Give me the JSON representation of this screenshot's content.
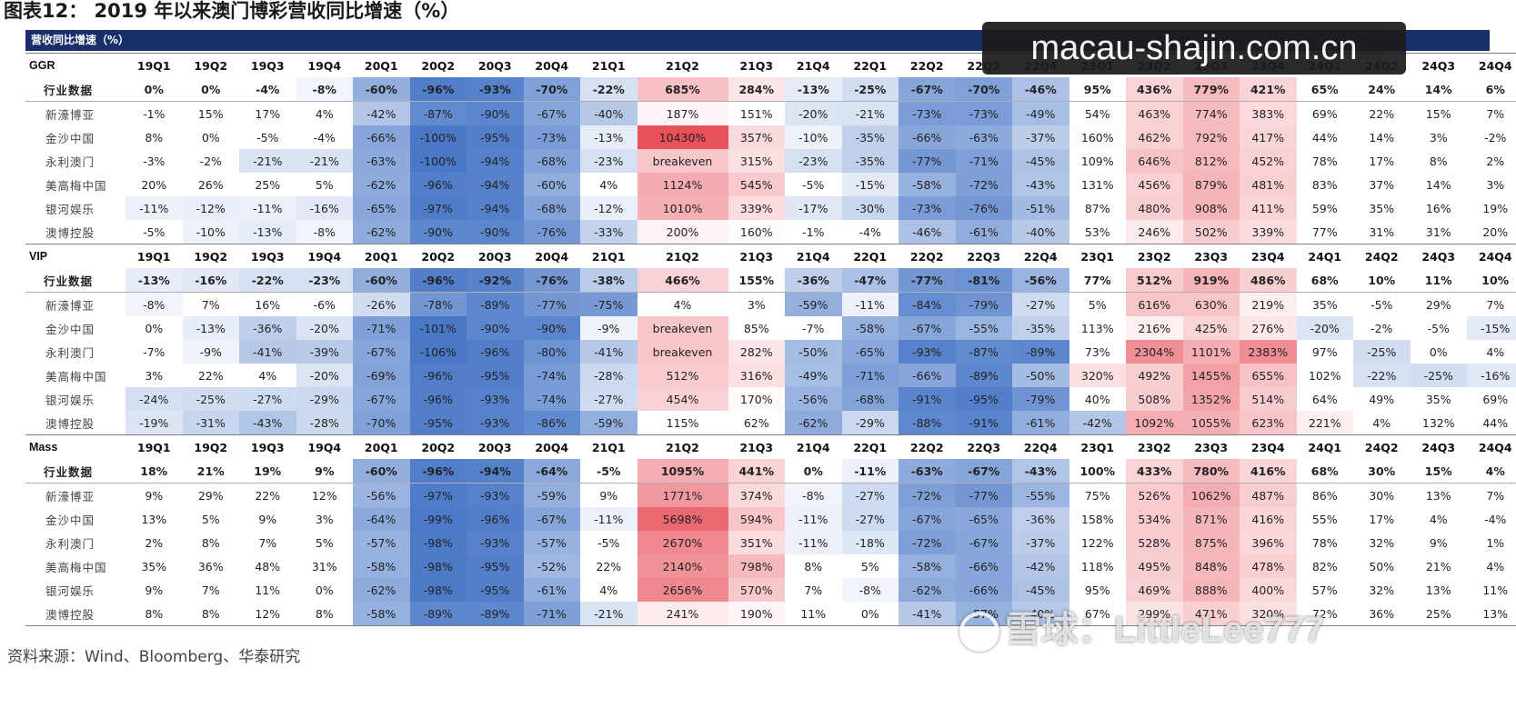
{
  "title": "图表12：  2019 年以来澳门博彩营收同比增速（%）",
  "banner": "营收同比增速（%）",
  "source": "资料来源：Wind、Bloomberg、华泰研究",
  "watermark": {
    "url": "macau-shajin.com.cn",
    "snowball": "雪球：LittleLee777"
  },
  "quarters": [
    "19Q1",
    "19Q2",
    "19Q3",
    "19Q4",
    "20Q1",
    "20Q2",
    "20Q3",
    "20Q4",
    "21Q1",
    "21Q2",
    "21Q3",
    "21Q4",
    "22Q1",
    "22Q2",
    "22Q3",
    "22Q4",
    "23Q1",
    "23Q2",
    "23Q3",
    "23Q4",
    "24Q1",
    "24Q2",
    "24Q3",
    "24Q4"
  ],
  "sections": [
    {
      "name": "GGR",
      "rows": [
        {
          "label": "行业数据",
          "values": [
            "0%",
            "0%",
            "-4%",
            "-8%",
            "-60%",
            "-96%",
            "-93%",
            "-70%",
            "-22%",
            "685%",
            "284%",
            "-13%",
            "-25%",
            "-67%",
            "-70%",
            "-46%",
            "95%",
            "436%",
            "779%",
            "421%",
            "65%",
            "24%",
            "14%",
            "6%"
          ]
        },
        {
          "label": "新濠博亚",
          "values": [
            "-1%",
            "15%",
            "17%",
            "4%",
            "-42%",
            "-87%",
            "-90%",
            "-67%",
            "-40%",
            "187%",
            "151%",
            "-20%",
            "-21%",
            "-73%",
            "-73%",
            "-49%",
            "54%",
            "463%",
            "774%",
            "383%",
            "69%",
            "22%",
            "15%",
            "7%"
          ]
        },
        {
          "label": "金沙中国",
          "values": [
            "8%",
            "0%",
            "-5%",
            "-4%",
            "-66%",
            "-100%",
            "-95%",
            "-73%",
            "-13%",
            "10430%",
            "357%",
            "-10%",
            "-35%",
            "-66%",
            "-63%",
            "-37%",
            "160%",
            "462%",
            "792%",
            "417%",
            "44%",
            "14%",
            "3%",
            "-2%"
          ]
        },
        {
          "label": "永利澳门",
          "values": [
            "-3%",
            "-2%",
            "-21%",
            "-21%",
            "-63%",
            "-100%",
            "-94%",
            "-68%",
            "-23%",
            "breakeven",
            "315%",
            "-23%",
            "-35%",
            "-77%",
            "-71%",
            "-45%",
            "109%",
            "646%",
            "812%",
            "452%",
            "78%",
            "17%",
            "8%",
            "2%"
          ]
        },
        {
          "label": "美高梅中国",
          "values": [
            "20%",
            "26%",
            "25%",
            "5%",
            "-62%",
            "-96%",
            "-94%",
            "-60%",
            "4%",
            "1124%",
            "545%",
            "-5%",
            "-15%",
            "-58%",
            "-72%",
            "-43%",
            "131%",
            "456%",
            "879%",
            "481%",
            "83%",
            "37%",
            "14%",
            "3%"
          ]
        },
        {
          "label": "银河娱乐",
          "values": [
            "-11%",
            "-12%",
            "-11%",
            "-16%",
            "-65%",
            "-97%",
            "-94%",
            "-68%",
            "-12%",
            "1010%",
            "339%",
            "-17%",
            "-30%",
            "-73%",
            "-76%",
            "-51%",
            "87%",
            "480%",
            "908%",
            "411%",
            "59%",
            "35%",
            "16%",
            "19%"
          ]
        },
        {
          "label": "澳博控股",
          "values": [
            "-5%",
            "-10%",
            "-13%",
            "-8%",
            "-62%",
            "-90%",
            "-90%",
            "-76%",
            "-33%",
            "200%",
            "160%",
            "-1%",
            "-4%",
            "-46%",
            "-61%",
            "-40%",
            "53%",
            "246%",
            "502%",
            "339%",
            "77%",
            "31%",
            "31%",
            "20%"
          ]
        }
      ]
    },
    {
      "name": "VIP",
      "rows": [
        {
          "label": "行业数据",
          "values": [
            "-13%",
            "-16%",
            "-22%",
            "-23%",
            "-60%",
            "-96%",
            "-92%",
            "-76%",
            "-38%",
            "466%",
            "155%",
            "-36%",
            "-47%",
            "-77%",
            "-81%",
            "-56%",
            "77%",
            "512%",
            "919%",
            "486%",
            "68%",
            "10%",
            "11%",
            "10%"
          ]
        },
        {
          "label": "新濠博亚",
          "values": [
            "-8%",
            "7%",
            "16%",
            "-6%",
            "-26%",
            "-78%",
            "-89%",
            "-77%",
            "-75%",
            "4%",
            "3%",
            "-59%",
            "-11%",
            "-84%",
            "-79%",
            "-27%",
            "5%",
            "616%",
            "630%",
            "219%",
            "35%",
            "-5%",
            "29%",
            "7%"
          ]
        },
        {
          "label": "金沙中国",
          "values": [
            "0%",
            "-13%",
            "-36%",
            "-20%",
            "-71%",
            "-101%",
            "-90%",
            "-90%",
            "-9%",
            "breakeven",
            "85%",
            "-7%",
            "-58%",
            "-67%",
            "-55%",
            "-35%",
            "113%",
            "216%",
            "425%",
            "276%",
            "-20%",
            "-2%",
            "-5%",
            "-15%"
          ]
        },
        {
          "label": "永利澳门",
          "values": [
            "-7%",
            "-9%",
            "-41%",
            "-39%",
            "-67%",
            "-106%",
            "-96%",
            "-80%",
            "-41%",
            "breakeven",
            "282%",
            "-50%",
            "-65%",
            "-93%",
            "-87%",
            "-89%",
            "73%",
            "2304%",
            "1101%",
            "2383%",
            "97%",
            "-25%",
            "0%",
            "4%"
          ]
        },
        {
          "label": "美高梅中国",
          "values": [
            "3%",
            "22%",
            "4%",
            "-20%",
            "-69%",
            "-96%",
            "-95%",
            "-74%",
            "-28%",
            "512%",
            "316%",
            "-49%",
            "-71%",
            "-66%",
            "-89%",
            "-50%",
            "320%",
            "492%",
            "1455%",
            "655%",
            "102%",
            "-22%",
            "-25%",
            "-16%"
          ]
        },
        {
          "label": "银河娱乐",
          "values": [
            "-24%",
            "-25%",
            "-27%",
            "-29%",
            "-67%",
            "-96%",
            "-93%",
            "-74%",
            "-27%",
            "454%",
            "170%",
            "-56%",
            "-68%",
            "-91%",
            "-95%",
            "-79%",
            "40%",
            "508%",
            "1352%",
            "514%",
            "64%",
            "49%",
            "35%",
            "69%"
          ]
        },
        {
          "label": "澳博控股",
          "values": [
            "-19%",
            "-31%",
            "-43%",
            "-28%",
            "-70%",
            "-95%",
            "-93%",
            "-86%",
            "-59%",
            "115%",
            "62%",
            "-62%",
            "-29%",
            "-88%",
            "-91%",
            "-61%",
            "-42%",
            "1092%",
            "1055%",
            "623%",
            "221%",
            "4%",
            "132%",
            "44%"
          ]
        }
      ]
    },
    {
      "name": "Mass",
      "rows": [
        {
          "label": "行业数据",
          "values": [
            "18%",
            "21%",
            "19%",
            "9%",
            "-60%",
            "-96%",
            "-94%",
            "-64%",
            "-5%",
            "1095%",
            "441%",
            "0%",
            "-11%",
            "-63%",
            "-67%",
            "-43%",
            "100%",
            "433%",
            "780%",
            "416%",
            "68%",
            "30%",
            "15%",
            "4%"
          ]
        },
        {
          "label": "新濠博亚",
          "values": [
            "9%",
            "29%",
            "22%",
            "12%",
            "-56%",
            "-97%",
            "-93%",
            "-59%",
            "9%",
            "1771%",
            "374%",
            "-8%",
            "-27%",
            "-72%",
            "-77%",
            "-55%",
            "75%",
            "526%",
            "1062%",
            "487%",
            "86%",
            "30%",
            "13%",
            "7%"
          ]
        },
        {
          "label": "金沙中国",
          "values": [
            "13%",
            "5%",
            "9%",
            "3%",
            "-64%",
            "-99%",
            "-96%",
            "-67%",
            "-11%",
            "5698%",
            "594%",
            "-11%",
            "-27%",
            "-67%",
            "-65%",
            "-36%",
            "158%",
            "534%",
            "871%",
            "416%",
            "55%",
            "17%",
            "4%",
            "-4%"
          ]
        },
        {
          "label": "永利澳门",
          "values": [
            "2%",
            "8%",
            "7%",
            "5%",
            "-57%",
            "-98%",
            "-93%",
            "-57%",
            "-5%",
            "2670%",
            "351%",
            "-11%",
            "-18%",
            "-72%",
            "-67%",
            "-37%",
            "122%",
            "528%",
            "875%",
            "396%",
            "78%",
            "32%",
            "9%",
            "1%"
          ]
        },
        {
          "label": "美高梅中国",
          "values": [
            "35%",
            "36%",
            "48%",
            "31%",
            "-58%",
            "-98%",
            "-95%",
            "-52%",
            "22%",
            "2140%",
            "798%",
            "8%",
            "5%",
            "-58%",
            "-66%",
            "-42%",
            "118%",
            "495%",
            "848%",
            "478%",
            "82%",
            "50%",
            "21%",
            "4%"
          ]
        },
        {
          "label": "银河娱乐",
          "values": [
            "9%",
            "7%",
            "11%",
            "0%",
            "-62%",
            "-98%",
            "-95%",
            "-61%",
            "4%",
            "2656%",
            "570%",
            "7%",
            "-8%",
            "-62%",
            "-66%",
            "-45%",
            "95%",
            "469%",
            "888%",
            "400%",
            "57%",
            "32%",
            "13%",
            "11%"
          ]
        },
        {
          "label": "澳博控股",
          "values": [
            "8%",
            "8%",
            "12%",
            "8%",
            "-58%",
            "-89%",
            "-89%",
            "-71%",
            "-21%",
            "241%",
            "190%",
            "11%",
            "0%",
            "-41%",
            "-57%",
            "-40%",
            "67%",
            "299%",
            "471%",
            "320%",
            "72%",
            "36%",
            "25%",
            "13%"
          ]
        }
      ]
    }
  ],
  "colors": {
    "banner": "#1a2e6c",
    "negative_max": "#4a78c7",
    "positive_max": "#e8505a",
    "breakeven": "#f7c6c8"
  }
}
